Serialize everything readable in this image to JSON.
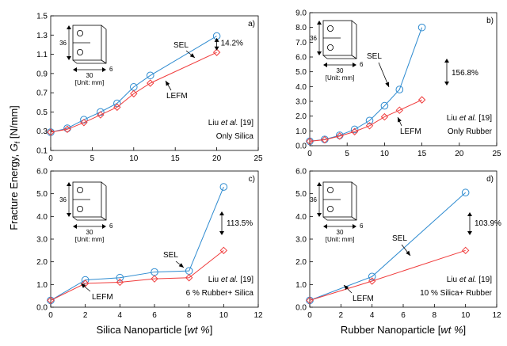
{
  "figure": {
    "ylabel_main": "Fracture Energy, ",
    "ylabel_var": "G",
    "ylabel_sub": "f",
    "ylabel_unit": " [N/mm]"
  },
  "colors": {
    "sel": "#2e8bd0",
    "lefm": "#f03c3c"
  },
  "schematic": {
    "height_label": "36",
    "width_label": "30",
    "depth_label": "6",
    "unit_label": "[Unit: mm]"
  },
  "chart_data": [
    {
      "type": "line",
      "panel_label": "a)",
      "title": "",
      "xlim": [
        0,
        25
      ],
      "xticks": [
        0,
        5,
        10,
        15,
        20,
        25
      ],
      "ylim": [
        0.1,
        1.5
      ],
      "yticks": [
        0.1,
        0.3,
        0.5,
        0.7,
        0.9,
        1.1,
        1.3,
        1.5
      ],
      "ytick_labels": [
        "0.1",
        "0.3",
        "0.5",
        "0.7",
        "0.9",
        "1.1",
        "1.3",
        "1.5"
      ],
      "xlabel": "",
      "ylabel": "",
      "series": [
        {
          "name": "SEL",
          "marker": "circle",
          "x": [
            0,
            2,
            4,
            6,
            8,
            10,
            12,
            20
          ],
          "y": [
            0.29,
            0.33,
            0.42,
            0.5,
            0.59,
            0.76,
            0.88,
            1.29
          ]
        },
        {
          "name": "LEFM",
          "marker": "diamond",
          "x": [
            0,
            2,
            4,
            6,
            8,
            10,
            12,
            20
          ],
          "y": [
            0.29,
            0.32,
            0.39,
            0.47,
            0.55,
            0.69,
            0.8,
            1.12
          ]
        }
      ],
      "sel_label": "SEL",
      "lefm_label": "LEFM",
      "pct_label": "14.2%",
      "ref_author": "Liu ",
      "ref_etal": "et al.",
      "ref_num": " [19]",
      "desc": "Only Silica"
    },
    {
      "type": "line",
      "panel_label": "b)",
      "xlim": [
        0,
        25
      ],
      "xticks": [
        0,
        5,
        10,
        15,
        20,
        25
      ],
      "ylim": [
        0,
        9
      ],
      "yticks": [
        0,
        1,
        2,
        3,
        4,
        5,
        6,
        7,
        8,
        9
      ],
      "ytick_labels": [
        "0.0",
        "1.0",
        "2.0",
        "3.0",
        "4.0",
        "5.0",
        "6.0",
        "7.0",
        "8.0",
        "9.0"
      ],
      "xlabel": "",
      "ylabel": "",
      "series": [
        {
          "name": "SEL",
          "marker": "circle",
          "x": [
            0,
            2,
            4,
            6,
            8,
            10,
            12,
            15
          ],
          "y": [
            0.3,
            0.42,
            0.7,
            1.1,
            1.7,
            2.7,
            3.8,
            8.0
          ]
        },
        {
          "name": "LEFM",
          "marker": "diamond",
          "x": [
            0,
            2,
            4,
            6,
            8,
            10,
            12,
            15
          ],
          "y": [
            0.3,
            0.4,
            0.65,
            0.95,
            1.35,
            1.95,
            2.4,
            3.1
          ]
        }
      ],
      "sel_label": "SEL",
      "lefm_label": "LEFM",
      "pct_label": "156.8%",
      "ref_author": "Liu ",
      "ref_etal": "et al.",
      "ref_num": " [19]",
      "desc": "Only Rubber"
    },
    {
      "type": "line",
      "panel_label": "c)",
      "xlim": [
        0,
        12
      ],
      "xticks": [
        0,
        2,
        4,
        6,
        8,
        10,
        12
      ],
      "ylim": [
        0,
        6
      ],
      "yticks": [
        0,
        1,
        2,
        3,
        4,
        5,
        6
      ],
      "ytick_labels": [
        "0.0",
        "1.0",
        "2.0",
        "3.0",
        "4.0",
        "5.0",
        "6.0"
      ],
      "xlabel": "Silica Nanoparticle [",
      "xlabel_it": "wt %",
      "xlabel_end": "]",
      "series": [
        {
          "name": "SEL",
          "marker": "circle",
          "x": [
            0,
            2,
            4,
            6,
            8,
            10
          ],
          "y": [
            0.3,
            1.2,
            1.3,
            1.55,
            1.6,
            5.3
          ]
        },
        {
          "name": "LEFM",
          "marker": "diamond",
          "x": [
            0,
            2,
            4,
            6,
            8,
            10
          ],
          "y": [
            0.3,
            1.05,
            1.1,
            1.25,
            1.3,
            2.5
          ]
        }
      ],
      "sel_label": "SEL",
      "lefm_label": "LEFM",
      "pct_label": "113.5%",
      "ref_author": "Liu ",
      "ref_etal": "et al.",
      "ref_num": " [19]",
      "desc": "6 % Rubber+ Silica"
    },
    {
      "type": "line",
      "panel_label": "d)",
      "xlim": [
        0,
        12
      ],
      "xticks": [
        0,
        2,
        4,
        6,
        8,
        10,
        12
      ],
      "ylim": [
        0,
        6
      ],
      "yticks": [
        0,
        1,
        2,
        3,
        4,
        5,
        6
      ],
      "ytick_labels": [
        "0.0",
        "1.0",
        "2.0",
        "3.0",
        "4.0",
        "5.0",
        "6.0"
      ],
      "xlabel": "Rubber Nanoparticle [",
      "xlabel_it": "wt %",
      "xlabel_end": "]",
      "series": [
        {
          "name": "SEL",
          "marker": "circle",
          "x": [
            0,
            4,
            10
          ],
          "y": [
            0.3,
            1.35,
            5.05
          ]
        },
        {
          "name": "LEFM",
          "marker": "diamond",
          "x": [
            0,
            4,
            10
          ],
          "y": [
            0.3,
            1.15,
            2.5
          ]
        }
      ],
      "sel_label": "SEL",
      "lefm_label": "LEFM",
      "pct_label": "103.9%",
      "ref_author": "Liu ",
      "ref_etal": "et al.",
      "ref_num": " [19]",
      "desc": "10 % Silica+ Rubber"
    }
  ]
}
